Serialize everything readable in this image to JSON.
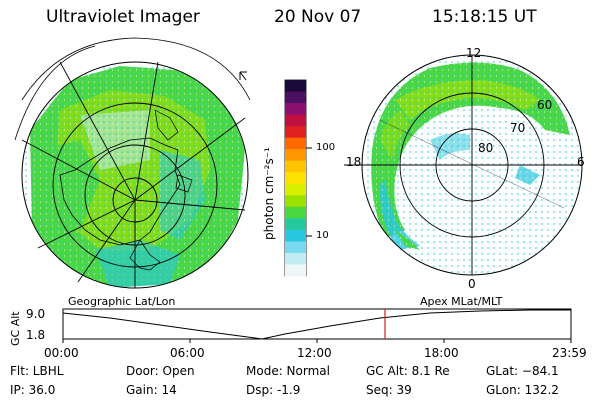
{
  "header": {
    "title": "Ultraviolet Imager",
    "date": "20 Nov 07",
    "time": "15:18:15 UT"
  },
  "colorbar": {
    "unit_label": "photon cm⁻²s⁻¹",
    "ticks": [
      "100",
      "10"
    ],
    "colors": [
      "#1a0a3a",
      "#4b1060",
      "#8b1070",
      "#c01040",
      "#e02020",
      "#ff6a00",
      "#ff9800",
      "#ffc400",
      "#ffe100",
      "#d8f000",
      "#9ae000",
      "#4ad840",
      "#26c8a0",
      "#28c8e0",
      "#7ad8f0",
      "#c0ecf4",
      "#eef6f8"
    ]
  },
  "geo_panel": {
    "label": "Geographic Lat/Lon"
  },
  "apex_panel": {
    "label": "Apex MLat/MLT",
    "mlt_labels": {
      "top": "12",
      "left": "18",
      "right": "6",
      "bottom": "0"
    },
    "lat_labels": [
      "60",
      "70",
      "80"
    ]
  },
  "altitude_plot": {
    "ylabel": "GC Alt",
    "yticks": [
      "9.0",
      "1.8"
    ],
    "xticks": [
      "00:00",
      "06:00",
      "12:00",
      "18:00",
      "23:59"
    ],
    "marker_time": "15:18",
    "marker_color": "#cc2020"
  },
  "status": {
    "flt": "Flt: LBHL",
    "ip": "IP: 36.0",
    "door": "Door: Open",
    "gain": "Gain: 14",
    "mode": "Mode: Normal",
    "dsp": "Dsp:    -1.9",
    "gc_alt": "GC Alt: 8.1 Re",
    "seq": "Seq: 39",
    "glat": "GLat: −84.1",
    "glon": "GLon: 132.2"
  }
}
